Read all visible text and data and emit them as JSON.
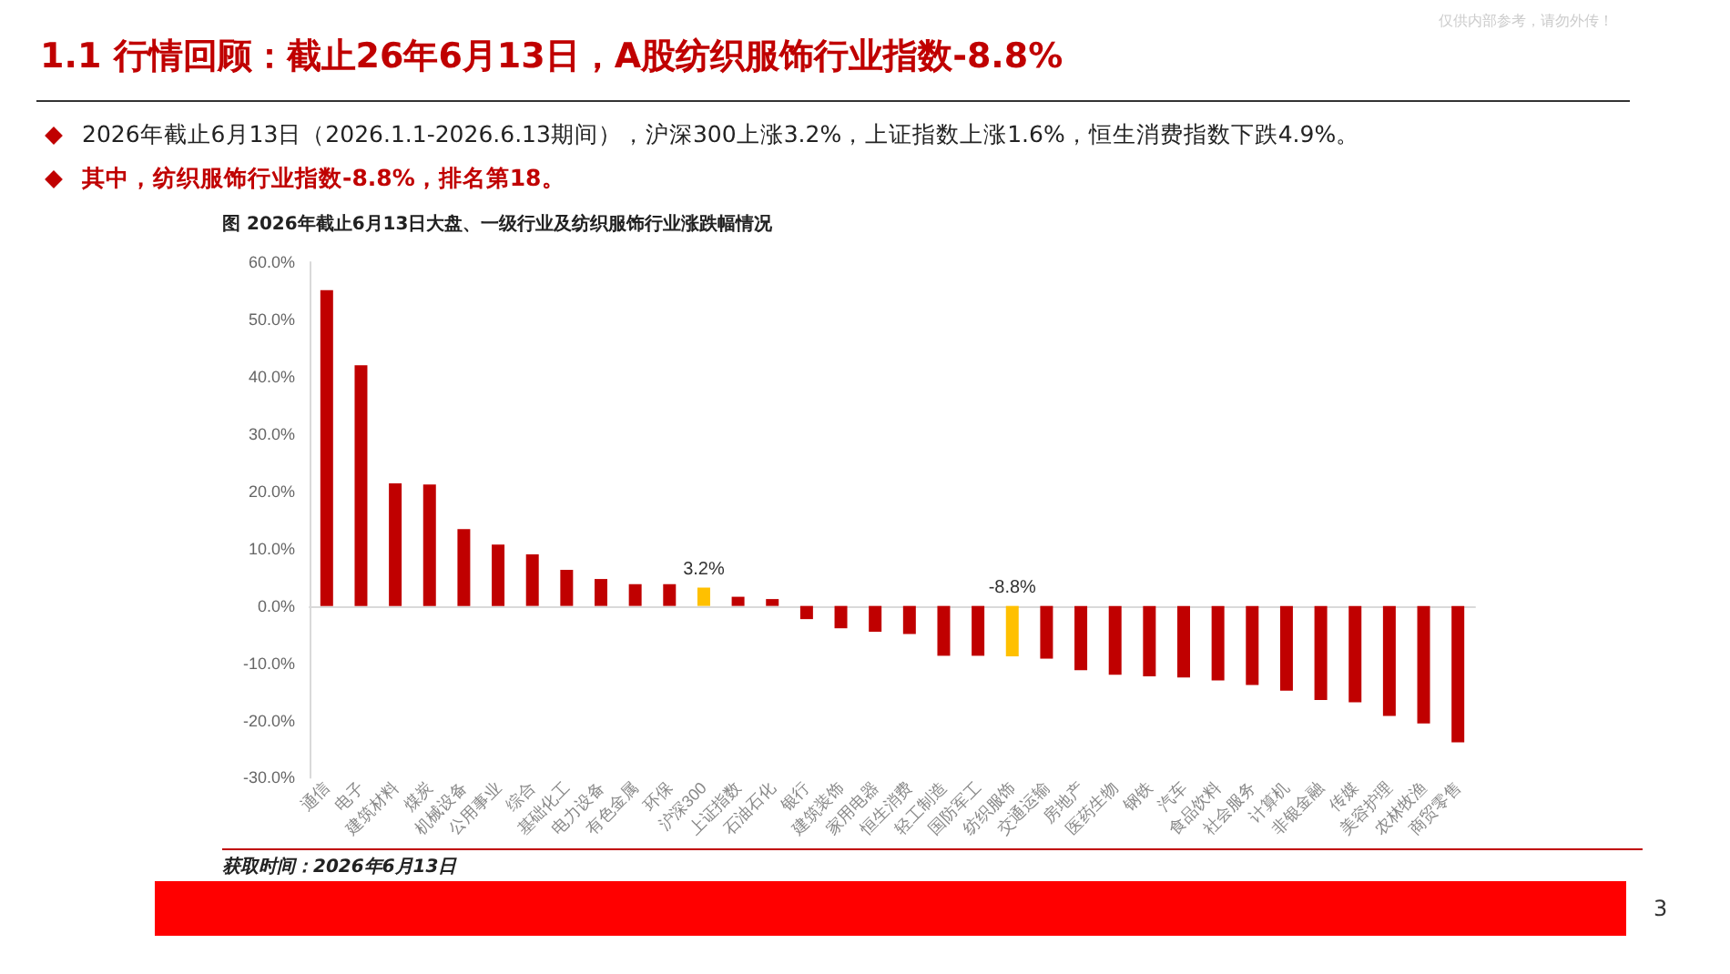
{
  "chart_data": {
    "type": "bar",
    "title": "1.1 行情回顾：截止26年6月13日，A股纺织服饰行业指数-8.8%",
    "subtitle": "图 2026年截止6月13日大盘、一级行业及纺织服饰行业涨跌幅情况",
    "annotations": [
      "2026年截止6月13日（2026.1.1-2026.6.13期间），沪深300上涨3.2%，上证指数上涨1.6%，恒生消费指数下跌4.9%。",
      "其中，纺织服饰行业指数-8.8%，排名第18。",
      "获取时间：2026年6月13日",
      "3",
      "仅供内部参考，请勿外传！"
    ],
    "categories": [
      "通信",
      "电子",
      "建筑材料",
      "煤炭",
      "机械设备",
      "公用事业",
      "综合",
      "基础化工",
      "电力设备",
      "有色金属",
      "环保",
      "沪深300",
      "上证指数",
      "石油石化",
      "银行",
      "建筑装饰",
      "家用电器",
      "恒生消费",
      "轻工制造",
      "国防军工",
      "纺织服饰",
      "交通运输",
      "房地产",
      "医药生物",
      "钢铁",
      "汽车",
      "食品饮料",
      "社会服务",
      "计算机",
      "非银金融",
      "传媒",
      "美容护理",
      "农林牧渔",
      "商贸零售"
    ],
    "values": [
      55.1,
      42.0,
      21.4,
      21.2,
      13.4,
      10.7,
      9.0,
      6.3,
      4.7,
      3.8,
      3.8,
      3.2,
      1.6,
      1.2,
      -2.3,
      -3.9,
      -4.5,
      -4.9,
      -8.7,
      -8.7,
      -8.8,
      -9.2,
      -11.2,
      -12.0,
      -12.3,
      -12.5,
      -13.0,
      -13.8,
      -14.8,
      -16.4,
      -16.8,
      -19.2,
      -20.5,
      -23.8
    ],
    "colors": [
      "#c00000",
      "#c00000",
      "#c00000",
      "#c00000",
      "#c00000",
      "#c00000",
      "#c00000",
      "#c00000",
      "#c00000",
      "#c00000",
      "#c00000",
      "#ffc000",
      "#c00000",
      "#c00000",
      "#c00000",
      "#c00000",
      "#c00000",
      "#c00000",
      "#c00000",
      "#c00000",
      "#ffc000",
      "#c00000",
      "#c00000",
      "#c00000",
      "#c00000",
      "#c00000",
      "#c00000",
      "#c00000",
      "#c00000",
      "#c00000",
      "#c00000",
      "#c00000",
      "#c00000",
      "#c00000"
    ],
    "value_labels": [
      null,
      null,
      null,
      null,
      null,
      null,
      null,
      null,
      null,
      null,
      null,
      "3.2%",
      null,
      null,
      null,
      null,
      null,
      null,
      null,
      null,
      "-8.8%",
      null,
      null,
      null,
      null,
      null,
      null,
      null,
      null,
      null,
      null,
      null,
      null,
      null
    ],
    "ylim": [
      -30,
      60
    ],
    "yticks": [
      {
        "value": -30,
        "label": "-30.0%"
      },
      {
        "value": -20,
        "label": "-20.0%"
      },
      {
        "value": -10,
        "label": "-10.0%"
      },
      {
        "value": 0,
        "label": "0.0%"
      },
      {
        "value": 10,
        "label": "10.0%"
      },
      {
        "value": 20,
        "label": "20.0%"
      },
      {
        "value": 30,
        "label": "30.0%"
      },
      {
        "value": 40,
        "label": "40.0%"
      },
      {
        "value": 50,
        "label": "50.0%"
      },
      {
        "value": 60,
        "label": "60.0%"
      }
    ],
    "data_labels": false
  }
}
